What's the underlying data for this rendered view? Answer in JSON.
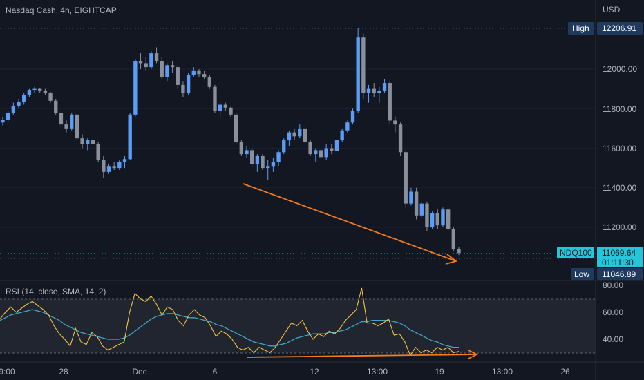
{
  "header": {
    "title": "Nasdaq Cash, 4h, EIGHTCAP",
    "currency": "USD"
  },
  "colors": {
    "background": "#131722",
    "up_candle": "#5b9cf6",
    "down_candle": "#8a8f9c",
    "annotation": "#f57c1f",
    "rsi_line": "#f5c542",
    "rsi_ma": "#3fa7c9",
    "rsi_band": "#2a2e39",
    "axis_text": "#b2b5be",
    "badge_dark": "#1e3a5f",
    "badge_accent": "#26c6da"
  },
  "price_axis": {
    "ticks": [
      "12000.00",
      "11800.00",
      "11600.00",
      "11400.00",
      "11200.00"
    ],
    "high_label": "High",
    "high_value": "12206.91",
    "current_symbol": "NDQ100",
    "current_value": "11069.64",
    "countdown": "01:11:30",
    "low_label": "Low",
    "low_value": "11046.89"
  },
  "rsi": {
    "label": "RSI (14, close, SMA, 14, 2)",
    "ticks": [
      "80.00",
      "60.00",
      "40.00"
    ],
    "band_upper": 70,
    "band_lower": 30
  },
  "time_axis": {
    "labels": [
      "9:00",
      "28",
      "Dec",
      "6",
      "12",
      "13:00",
      "19",
      "13:00",
      "26"
    ]
  },
  "chart_data": {
    "type": "candlestick",
    "title": "Nasdaq Cash, 4h, EIGHTCAP",
    "ylim": [
      11000,
      12250
    ],
    "high": 12206.91,
    "low": 11046.89,
    "last": 11069.64,
    "candles_ohlc": [
      [
        11730,
        11760,
        11715,
        11745
      ],
      [
        11745,
        11790,
        11735,
        11780
      ],
      [
        11780,
        11830,
        11770,
        11815
      ],
      [
        11815,
        11850,
        11800,
        11835
      ],
      [
        11835,
        11880,
        11820,
        11870
      ],
      [
        11870,
        11900,
        11860,
        11895
      ],
      [
        11895,
        11910,
        11880,
        11900
      ],
      [
        11900,
        11905,
        11880,
        11890
      ],
      [
        11890,
        11900,
        11870,
        11880
      ],
      [
        11880,
        11885,
        11830,
        11840
      ],
      [
        11840,
        11850,
        11770,
        11780
      ],
      [
        11780,
        11790,
        11700,
        11720
      ],
      [
        11720,
        11740,
        11680,
        11700
      ],
      [
        11700,
        11780,
        11690,
        11770
      ],
      [
        11770,
        11780,
        11640,
        11650
      ],
      [
        11650,
        11670,
        11600,
        11620
      ],
      [
        11620,
        11650,
        11590,
        11640
      ],
      [
        11640,
        11660,
        11610,
        11620
      ],
      [
        11620,
        11630,
        11530,
        11540
      ],
      [
        11540,
        11560,
        11450,
        11480
      ],
      [
        11480,
        11520,
        11470,
        11510
      ],
      [
        11510,
        11530,
        11490,
        11500
      ],
      [
        11500,
        11540,
        11490,
        11530
      ],
      [
        11530,
        11560,
        11500,
        11545
      ],
      [
        11545,
        11780,
        11540,
        11770
      ],
      [
        11770,
        12050,
        11760,
        12040
      ],
      [
        12040,
        12080,
        12000,
        12030
      ],
      [
        12030,
        12060,
        11990,
        12010
      ],
      [
        12010,
        12090,
        12000,
        12080
      ],
      [
        12080,
        12110,
        12030,
        12040
      ],
      [
        12040,
        12060,
        11950,
        11960
      ],
      [
        11960,
        12030,
        11940,
        12020
      ],
      [
        12020,
        12040,
        11980,
        12010
      ],
      [
        12010,
        12020,
        11900,
        11920
      ],
      [
        11920,
        11940,
        11860,
        11880
      ],
      [
        11880,
        11980,
        11870,
        11970
      ],
      [
        11970,
        12010,
        11960,
        11990
      ],
      [
        11990,
        12000,
        11960,
        11975
      ],
      [
        11975,
        11990,
        11950,
        11960
      ],
      [
        11960,
        11970,
        11900,
        11910
      ],
      [
        11910,
        11920,
        11780,
        11790
      ],
      [
        11790,
        11830,
        11760,
        11820
      ],
      [
        11820,
        11830,
        11790,
        11805
      ],
      [
        11805,
        11810,
        11760,
        11770
      ],
      [
        11770,
        11780,
        11620,
        11630
      ],
      [
        11630,
        11640,
        11560,
        11570
      ],
      [
        11570,
        11610,
        11550,
        11590
      ],
      [
        11590,
        11600,
        11510,
        11520
      ],
      [
        11520,
        11570,
        11480,
        11560
      ],
      [
        11560,
        11570,
        11490,
        11500
      ],
      [
        11500,
        11540,
        11440,
        11510
      ],
      [
        11510,
        11550,
        11480,
        11530
      ],
      [
        11530,
        11590,
        11510,
        11580
      ],
      [
        11580,
        11650,
        11570,
        11640
      ],
      [
        11640,
        11690,
        11610,
        11680
      ],
      [
        11680,
        11700,
        11640,
        11660
      ],
      [
        11660,
        11720,
        11650,
        11700
      ],
      [
        11700,
        11710,
        11620,
        11630
      ],
      [
        11630,
        11640,
        11560,
        11570
      ],
      [
        11570,
        11600,
        11530,
        11590
      ],
      [
        11590,
        11600,
        11540,
        11555
      ],
      [
        11555,
        11620,
        11540,
        11600
      ],
      [
        11600,
        11620,
        11570,
        11585
      ],
      [
        11585,
        11650,
        11580,
        11640
      ],
      [
        11640,
        11700,
        11630,
        11690
      ],
      [
        11690,
        11740,
        11680,
        11730
      ],
      [
        11730,
        11800,
        11720,
        11790
      ],
      [
        11790,
        12206,
        11780,
        12160
      ],
      [
        12160,
        12180,
        11850,
        11880
      ],
      [
        11880,
        11920,
        11830,
        11900
      ],
      [
        11900,
        11930,
        11860,
        11880
      ],
      [
        11880,
        11910,
        11830,
        11890
      ],
      [
        11890,
        11950,
        11880,
        11930
      ],
      [
        11930,
        11940,
        11720,
        11740
      ],
      [
        11740,
        11760,
        11680,
        11720
      ],
      [
        11720,
        11730,
        11560,
        11580
      ],
      [
        11580,
        11590,
        11300,
        11320
      ],
      [
        11320,
        11400,
        11310,
        11380
      ],
      [
        11380,
        11400,
        11240,
        11260
      ],
      [
        11260,
        11330,
        11250,
        11320
      ],
      [
        11320,
        11330,
        11180,
        11200
      ],
      [
        11200,
        11280,
        11190,
        11270
      ],
      [
        11270,
        11290,
        11190,
        11210
      ],
      [
        11210,
        11300,
        11200,
        11290
      ],
      [
        11290,
        11295,
        11180,
        11190
      ],
      [
        11190,
        11200,
        11080,
        11090
      ],
      [
        11090,
        11100,
        11060,
        11070
      ]
    ],
    "rsi_values": [
      55,
      60,
      64,
      60,
      63,
      66,
      68,
      65,
      62,
      58,
      50,
      44,
      40,
      35,
      48,
      38,
      36,
      45,
      42,
      35,
      32,
      34,
      36,
      38,
      60,
      74,
      70,
      68,
      72,
      66,
      58,
      64,
      62,
      54,
      50,
      58,
      62,
      58,
      56,
      50,
      42,
      46,
      44,
      40,
      34,
      32,
      34,
      30,
      34,
      32,
      30,
      34,
      40,
      46,
      52,
      50,
      54,
      46,
      40,
      44,
      42,
      46,
      44,
      48,
      54,
      58,
      62,
      78,
      52,
      52,
      50,
      52,
      55,
      43,
      44,
      38,
      28,
      34,
      30,
      32,
      30,
      34,
      32,
      34,
      30,
      31
    ],
    "rsi_sma_values": [
      54,
      56,
      58,
      59,
      60,
      61,
      62,
      61,
      60,
      58,
      56,
      54,
      51,
      49,
      47,
      45,
      44,
      43,
      42,
      41,
      40,
      40,
      40,
      41,
      43,
      46,
      49,
      52,
      55,
      57,
      58,
      59,
      59,
      58,
      57,
      56,
      56,
      55,
      54,
      53,
      51,
      50,
      48,
      46,
      44,
      42,
      40,
      38,
      37,
      36,
      35,
      35,
      36,
      37,
      39,
      41,
      42,
      43,
      44,
      44,
      44,
      45,
      45,
      46,
      47,
      49,
      51,
      53,
      53,
      54,
      54,
      54,
      54,
      53,
      52,
      50,
      47,
      45,
      43,
      41,
      39,
      38,
      36,
      35,
      34,
      34
    ],
    "annotations": [
      {
        "type": "arrow",
        "panel": "price",
        "from_price": 11420,
        "to_price": 11070,
        "direction": "down"
      },
      {
        "type": "arrow",
        "panel": "rsi",
        "from_rsi": 28,
        "to_rsi": 30,
        "direction": "flat"
      }
    ]
  }
}
